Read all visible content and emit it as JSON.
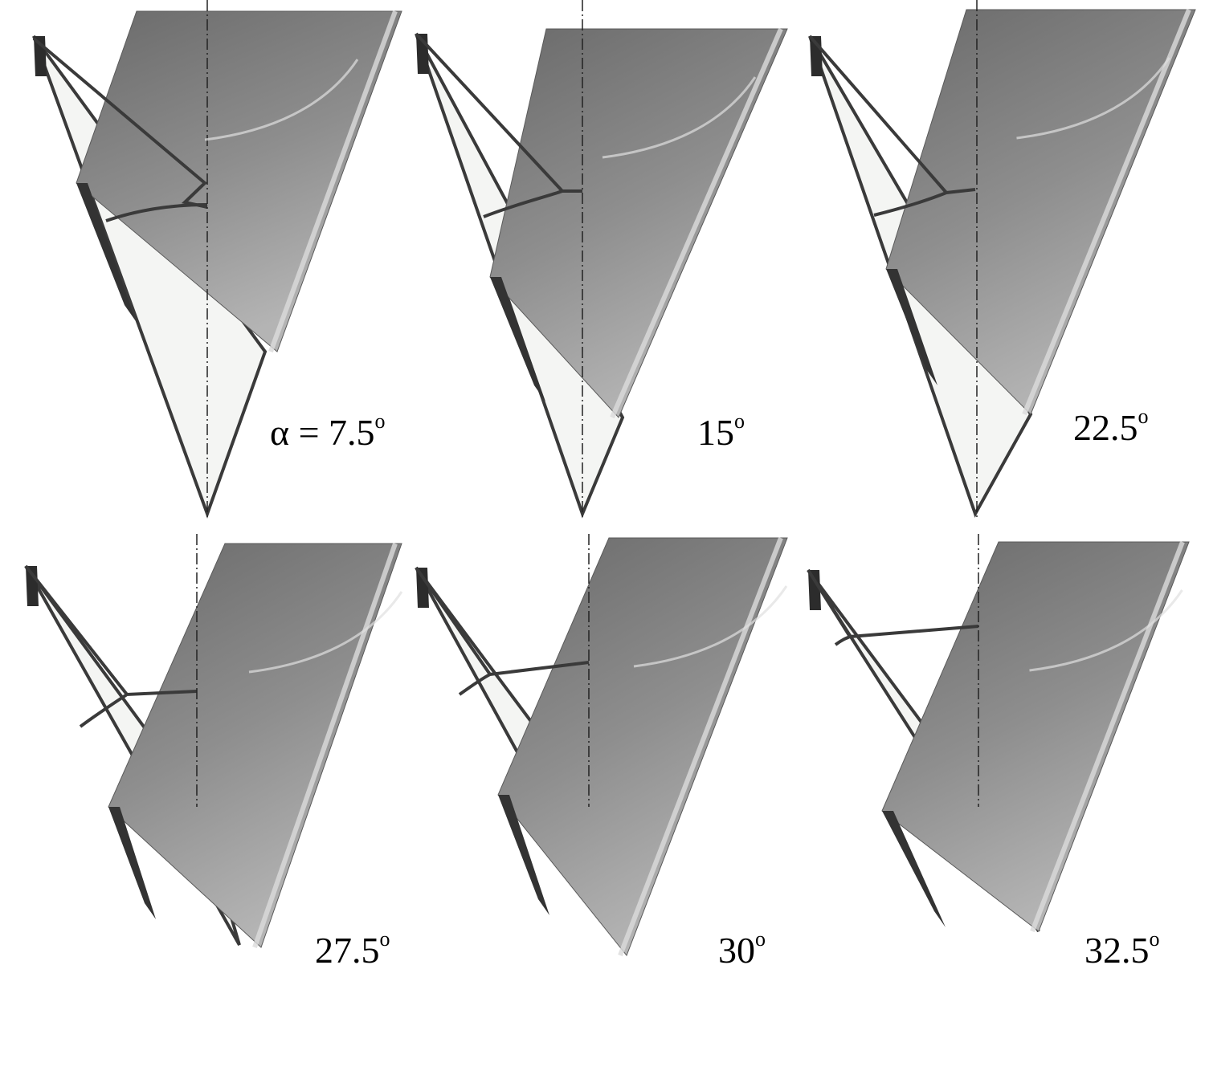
{
  "image": {
    "panels": [
      {
        "angle_prefix": "α = ",
        "angle_value": "7.5",
        "degree_symbol": "o"
      },
      {
        "angle_prefix": "",
        "angle_value": "15",
        "degree_symbol": "o"
      },
      {
        "angle_prefix": "",
        "angle_value": "22.5",
        "degree_symbol": "o"
      },
      {
        "angle_prefix": "",
        "angle_value": "27.5",
        "degree_symbol": "o"
      },
      {
        "angle_prefix": "",
        "angle_value": "30",
        "degree_symbol": "o"
      },
      {
        "angle_prefix": "",
        "angle_value": "32.5",
        "degree_symbol": "o"
      }
    ],
    "colors": {
      "plate_dark": "#6a6a6a",
      "plate_light": "#b4b4b4",
      "wing_fill": "#f4f5f3",
      "outline": "#3a3a3a"
    }
  }
}
